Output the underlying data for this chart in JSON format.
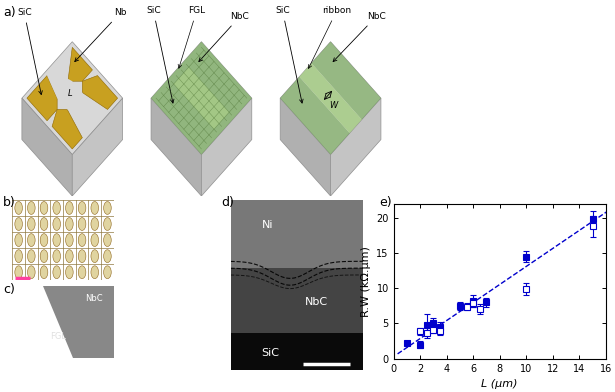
{
  "panel_labels": [
    "a)",
    "b)",
    "c)",
    "d)",
    "e)"
  ],
  "scatter_x_open": [
    2.0,
    2.5,
    3.0,
    3.5,
    5.5,
    6.0,
    6.5,
    10.0,
    15.0
  ],
  "scatter_y_open": [
    3.9,
    3.7,
    4.1,
    3.9,
    7.4,
    7.9,
    7.1,
    9.9,
    18.8
  ],
  "scatter_x_filled": [
    1.0,
    2.0,
    2.5,
    3.0,
    3.5,
    5.0,
    6.0,
    7.0,
    10.0,
    15.0
  ],
  "scatter_y_filled": [
    2.2,
    2.0,
    4.8,
    5.0,
    4.5,
    7.5,
    8.2,
    8.0,
    14.5,
    19.8
  ],
  "scatter_yerr_open": [
    0.5,
    0.8,
    0.5,
    0.6,
    0.5,
    0.5,
    0.7,
    0.8,
    1.5
  ],
  "scatter_yerr_filled": [
    0.3,
    0.5,
    1.5,
    0.8,
    0.7,
    0.6,
    0.8,
    0.6,
    0.8,
    1.2
  ],
  "fit_slope": 1.28,
  "fit_intercept": 0.3,
  "xlabel": "L (μm)",
  "ylabel": "R.W (kΩ.μm)",
  "xlim": [
    0,
    16
  ],
  "ylim": [
    0,
    22
  ],
  "xticks": [
    0,
    2,
    4,
    6,
    8,
    10,
    12,
    14,
    16
  ],
  "yticks": [
    0,
    5,
    10,
    15,
    20
  ],
  "color": "#0000cc",
  "bg_color": "#ffffff",
  "marker_size": 4,
  "font_size": 8,
  "box_top_color": "#d8d8d8",
  "box_left_color": "#b0b0b0",
  "box_right_color": "#c4c4c4",
  "box_edge_color": "#909090",
  "gold_color": "#c8a020",
  "gold_edge": "#906800",
  "fgl_color": "#7aab60",
  "fgl_light": "#a8cc88",
  "fgl_grid": "#4a7030"
}
